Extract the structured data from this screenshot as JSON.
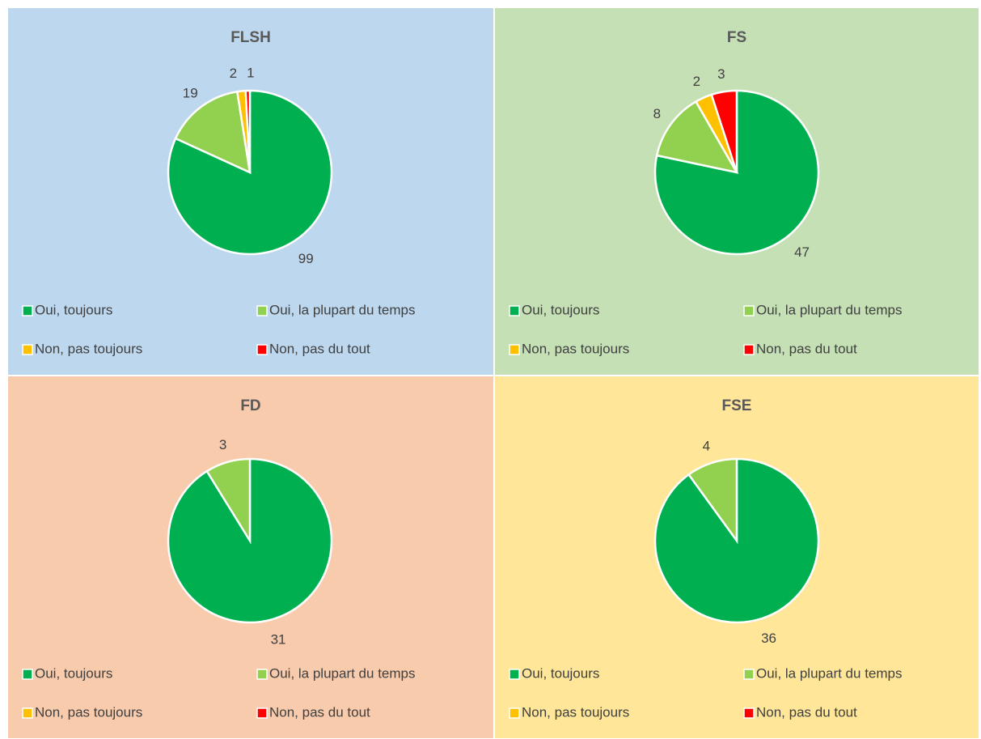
{
  "chart_data": [
    {
      "type": "pie",
      "title": "FLSH",
      "background": "#bdd7ee",
      "categories": [
        "Oui, toujours",
        "Oui, la plupart du temps",
        "Non, pas toujours",
        "Non, pas du tout"
      ],
      "values": [
        99,
        19,
        2,
        1
      ],
      "colors": [
        "#00b050",
        "#92d050",
        "#ffc000",
        "#ff0000"
      ]
    },
    {
      "type": "pie",
      "title": "FS",
      "background": "#c5e0b4",
      "categories": [
        "Oui, toujours",
        "Oui, la plupart du temps",
        "Non, pas toujours",
        "Non, pas du tout"
      ],
      "values": [
        47,
        8,
        2,
        3
      ],
      "colors": [
        "#00b050",
        "#92d050",
        "#ffc000",
        "#ff0000"
      ]
    },
    {
      "type": "pie",
      "title": "FD",
      "background": "#f8cbad",
      "categories": [
        "Oui, toujours",
        "Oui, la plupart du temps",
        "Non, pas toujours",
        "Non, pas du tout"
      ],
      "values": [
        31,
        3,
        null,
        null
      ],
      "colors": [
        "#00b050",
        "#92d050",
        "#ffc000",
        "#ff0000"
      ]
    },
    {
      "type": "pie",
      "title": "FSE",
      "background": "#ffe699",
      "categories": [
        "Oui, toujours",
        "Oui, la plupart du temps",
        "Non, pas toujours",
        "Non, pas du tout"
      ],
      "values": [
        36,
        4,
        null,
        null
      ],
      "colors": [
        "#00b050",
        "#92d050",
        "#ffc000",
        "#ff0000"
      ]
    }
  ]
}
